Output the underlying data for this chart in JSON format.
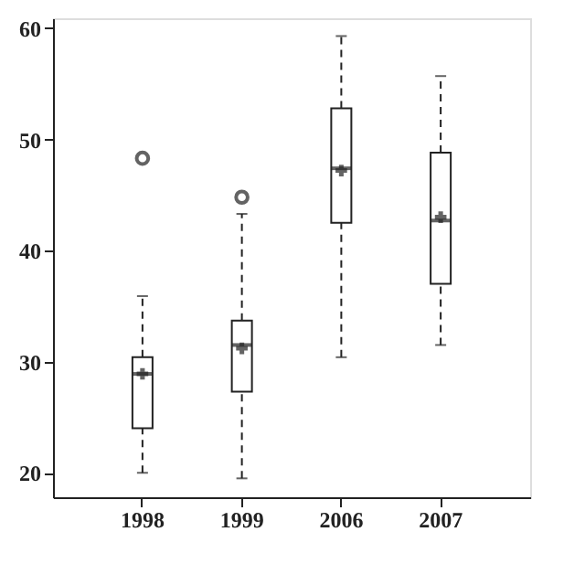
{
  "chart_data": {
    "type": "box",
    "categories": [
      "1998",
      "1999",
      "2006",
      "2007"
    ],
    "boxes": [
      {
        "low": 20,
        "q1": 24,
        "median": 28.9,
        "q3": 30.4,
        "high": 35.9,
        "mean": 28.9,
        "outliers": [
          48.3
        ]
      },
      {
        "low": 19.5,
        "q1": 27.3,
        "median": 31.5,
        "q3": 33.7,
        "high": 43.3,
        "mean": 31.2,
        "outliers": [
          44.8
        ]
      },
      {
        "low": 30.4,
        "q1": 42.5,
        "median": 47.4,
        "q3": 52.8,
        "high": 59.3,
        "mean": 47.2
      },
      {
        "low": 31.5,
        "q1": 37,
        "median": 42.7,
        "q3": 48.8,
        "high": 55.7,
        "mean": 43
      }
    ],
    "color": "#222222",
    "ylim": [
      17.8,
      60.9
    ],
    "yticks": [
      20,
      30,
      40,
      50,
      60
    ],
    "grid": false,
    "line_style": "dashed",
    "marker": "circle"
  }
}
